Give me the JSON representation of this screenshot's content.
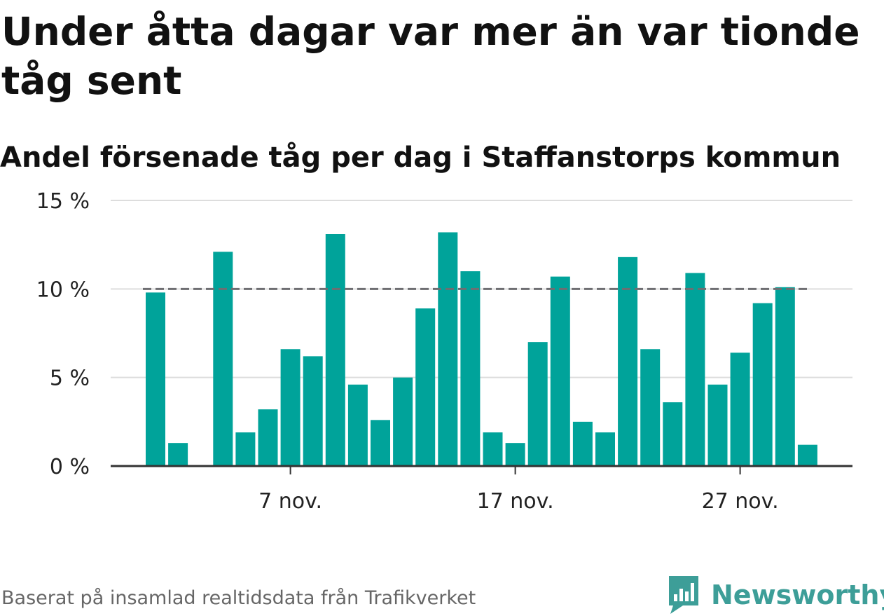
{
  "title": "Under åtta dagar var mer än var tionde tåg sent",
  "subtitle": "Andel försenade tåg per dag i Staffanstorps kommun",
  "source": "Baserat på insamlad realtidsdata från Trafikverket",
  "brand": {
    "name": "Newsworthy",
    "icon": "newsworthy-logo-icon",
    "color": "#3d9e98"
  },
  "chart_data": {
    "type": "bar",
    "x": [
      "2023-11-01",
      "2023-11-02",
      "2023-11-03",
      "2023-11-04",
      "2023-11-05",
      "2023-11-06",
      "2023-11-07",
      "2023-11-08",
      "2023-11-09",
      "2023-11-10",
      "2023-11-11",
      "2023-11-12",
      "2023-11-13",
      "2023-11-14",
      "2023-11-15",
      "2023-11-16",
      "2023-11-17",
      "2023-11-18",
      "2023-11-19",
      "2023-11-20",
      "2023-11-21",
      "2023-11-22",
      "2023-11-23",
      "2023-11-24",
      "2023-11-25",
      "2023-11-26",
      "2023-11-27",
      "2023-11-28",
      "2023-11-29",
      "2023-11-30"
    ],
    "values": [
      9.8,
      1.3,
      null,
      12.1,
      1.9,
      3.2,
      6.6,
      6.2,
      13.1,
      4.6,
      2.6,
      5.0,
      8.9,
      13.2,
      11.0,
      1.9,
      1.3,
      7.0,
      10.7,
      2.5,
      1.9,
      11.8,
      6.6,
      3.6,
      10.9,
      4.6,
      6.4,
      9.2,
      10.1,
      1.2
    ],
    "xticks": [
      "2023-11-07",
      "2023-11-17",
      "2023-11-27"
    ],
    "xtick_labels": [
      "7 nov.",
      "17 nov.",
      "27 nov."
    ],
    "yticks": [
      0,
      5,
      10,
      15
    ],
    "ytick_labels": [
      "0 %",
      "5 %",
      "10 %",
      "15 %"
    ],
    "ylim": [
      0,
      15
    ],
    "reference_line": 10,
    "grid": true,
    "bar_color": "#00a39a",
    "reference_line_color": "#6e6e72",
    "grid_color": "#dddddd",
    "axis_color": "#333333",
    "xlabel": "",
    "ylabel": ""
  }
}
